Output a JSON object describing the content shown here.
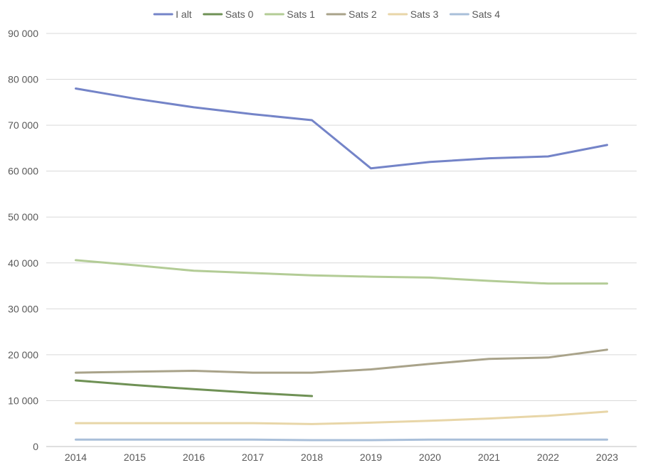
{
  "chart_data": {
    "type": "line",
    "title": "",
    "xlabel": "",
    "ylabel": "",
    "categories": [
      "2014",
      "2015",
      "2016",
      "2017",
      "2018",
      "2019",
      "2020",
      "2021",
      "2022",
      "2023"
    ],
    "ylim": [
      0,
      90000
    ],
    "y_ticks": [
      0,
      10000,
      20000,
      30000,
      40000,
      50000,
      60000,
      70000,
      80000,
      90000
    ],
    "y_tick_labels": [
      "0",
      "10 000",
      "20 000",
      "30 000",
      "40 000",
      "50 000",
      "60 000",
      "70 000",
      "80 000",
      "90 000"
    ],
    "grid": true,
    "legend_position": "top",
    "series": [
      {
        "name": "I alt",
        "color": "#7484c8",
        "values": [
          78000,
          75800,
          73900,
          72400,
          71100,
          60600,
          62000,
          62800,
          63200,
          65700
        ]
      },
      {
        "name": "Sats 0",
        "color": "#6f9155",
        "values": [
          14400,
          13400,
          12500,
          11700,
          11000,
          null,
          null,
          null,
          null,
          null
        ]
      },
      {
        "name": "Sats 1",
        "color": "#b3cc96",
        "values": [
          40600,
          39500,
          38300,
          37800,
          37300,
          37000,
          36800,
          36100,
          35500,
          35500
        ]
      },
      {
        "name": "Sats 2",
        "color": "#a9a38a",
        "values": [
          16100,
          16300,
          16500,
          16100,
          16100,
          16800,
          18000,
          19100,
          19400,
          21100
        ]
      },
      {
        "name": "Sats 3",
        "color": "#e8d6a8",
        "values": [
          5100,
          5100,
          5100,
          5100,
          4900,
          5200,
          5600,
          6100,
          6700,
          7600
        ]
      },
      {
        "name": "Sats 4",
        "color": "#a9bfd9",
        "values": [
          1500,
          1500,
          1500,
          1500,
          1400,
          1400,
          1500,
          1500,
          1500,
          1500
        ]
      }
    ]
  }
}
